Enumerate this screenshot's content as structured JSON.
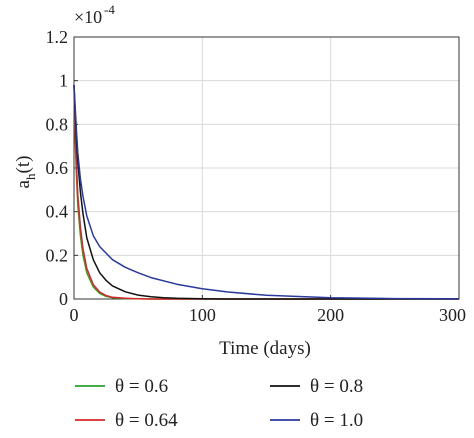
{
  "chart_data": {
    "type": "line",
    "xlabel": "Time (days)",
    "ylabel_main": "a",
    "ylabel_sub": "h",
    "ylabel_tail": "(t)",
    "xlim": [
      0,
      300
    ],
    "ylim": [
      0,
      1.2
    ],
    "x_ticks": [
      "0",
      "100",
      "200",
      "300"
    ],
    "y_ticks": [
      "0",
      "0.2",
      "0.4",
      "0.6",
      "0.8",
      "1",
      "1.2"
    ],
    "scale_multiplier": "×10",
    "scale_exponent": "-4",
    "grid": true,
    "legend_placement": "below",
    "series": [
      {
        "name": "θ = 0.6",
        "color": "#2ca02c",
        "x": [
          0,
          1,
          2,
          3,
          5,
          7,
          10,
          15,
          20,
          25,
          30,
          40,
          50,
          60,
          80,
          100,
          150,
          200,
          250,
          300
        ],
        "y": [
          0.98,
          0.72,
          0.55,
          0.43,
          0.29,
          0.2,
          0.12,
          0.055,
          0.025,
          0.012,
          0.006,
          0.002,
          0.001,
          0,
          0,
          0,
          0,
          0,
          0,
          0
        ]
      },
      {
        "name": "θ = 0.64",
        "color": "#d62728",
        "x": [
          0,
          1,
          2,
          3,
          5,
          7,
          10,
          15,
          20,
          25,
          30,
          40,
          50,
          60,
          80,
          100,
          150,
          200,
          250,
          300
        ],
        "y": [
          0.98,
          0.76,
          0.6,
          0.48,
          0.33,
          0.23,
          0.14,
          0.066,
          0.032,
          0.016,
          0.008,
          0.003,
          0.001,
          0,
          0,
          0,
          0,
          0,
          0,
          0
        ]
      },
      {
        "name": "θ = 0.8",
        "color": "#111111",
        "x": [
          0,
          1,
          2,
          3,
          5,
          7,
          10,
          15,
          20,
          25,
          30,
          40,
          50,
          60,
          70,
          80,
          100,
          120,
          150,
          200,
          250,
          300
        ],
        "y": [
          0.98,
          0.84,
          0.72,
          0.63,
          0.49,
          0.39,
          0.28,
          0.18,
          0.12,
          0.085,
          0.06,
          0.033,
          0.018,
          0.01,
          0.006,
          0.003,
          0.001,
          0,
          0,
          0,
          0,
          0
        ]
      },
      {
        "name": "θ = 1.0",
        "color": "#2a3a9c",
        "x": [
          0,
          1,
          2,
          3,
          5,
          7,
          10,
          15,
          20,
          30,
          40,
          50,
          60,
          80,
          100,
          120,
          150,
          200,
          250,
          300
        ],
        "y": [
          0.98,
          0.87,
          0.76,
          0.67,
          0.55,
          0.47,
          0.38,
          0.29,
          0.24,
          0.18,
          0.145,
          0.12,
          0.098,
          0.068,
          0.047,
          0.032,
          0.017,
          0.006,
          0.002,
          0.001
        ]
      }
    ]
  }
}
